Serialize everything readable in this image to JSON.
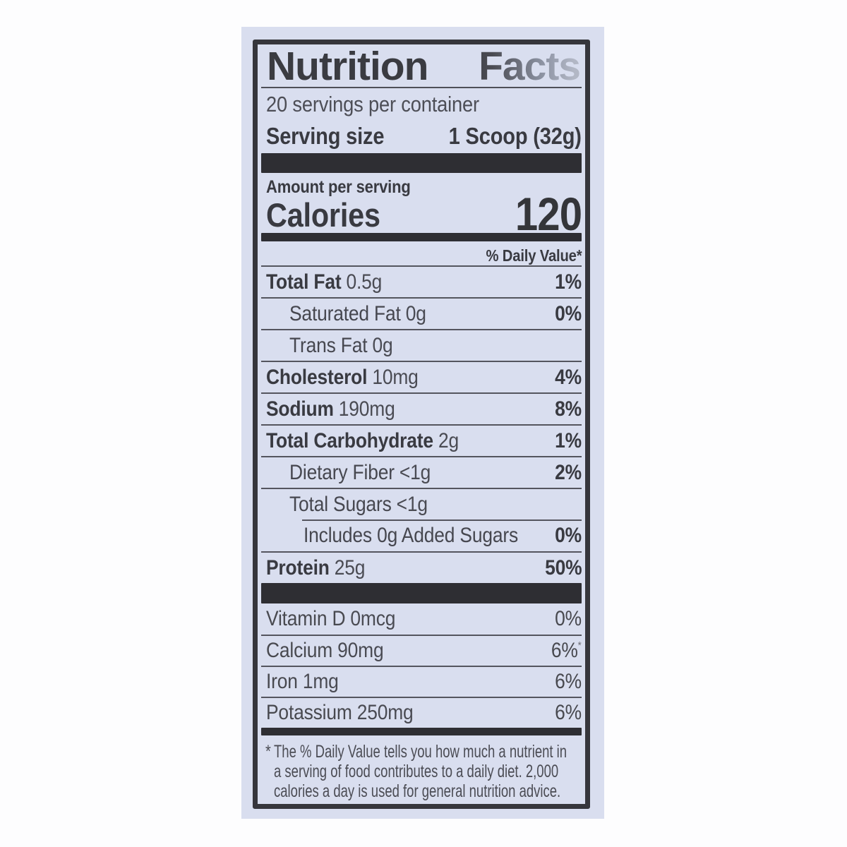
{
  "label": {
    "title_parts": [
      "Nutrition",
      "Facts"
    ],
    "servings_per_container": "20 servings per container",
    "serving_size": {
      "label": "Serving size",
      "value": "1 Scoop (32g)"
    },
    "amount_per_serving": "Amount per serving",
    "calories": {
      "label": "Calories",
      "value": "120"
    },
    "daily_value_header": "% Daily Value*",
    "rows": [
      {
        "name": "Total Fat",
        "amount": "0.5g",
        "percent": "1%"
      },
      {
        "name": "Saturated Fat",
        "amount": "0g",
        "percent": "0%"
      },
      {
        "name": "Trans Fat",
        "amount": "0g",
        "percent": ""
      },
      {
        "name": "Cholesterol",
        "amount": "10mg",
        "percent": "4%"
      },
      {
        "name": "Sodium",
        "amount": "190mg",
        "percent": "8%"
      },
      {
        "name": "Total Carbohydrate",
        "amount": "2g",
        "percent": "1%"
      },
      {
        "name": "Dietary Fiber",
        "amount": "<1g",
        "percent": "2%"
      },
      {
        "name": "Total Sugars",
        "amount": "<1g",
        "percent": ""
      },
      {
        "name": "Includes 0g Added Sugars",
        "amount": "",
        "percent": "0%"
      },
      {
        "name": "Protein",
        "amount": "25g",
        "percent": "50%"
      }
    ],
    "micronutrients": [
      {
        "name": "Vitamin D",
        "amount": "0mcg",
        "percent": "0%",
        "note": ""
      },
      {
        "name": "Calcium",
        "amount": "90mg",
        "percent": "6%",
        "note": "*"
      },
      {
        "name": "Iron",
        "amount": "1mg",
        "percent": "6%",
        "note": ""
      },
      {
        "name": "Potassium",
        "amount": "250mg",
        "percent": "6%",
        "note": ""
      }
    ],
    "footnote": {
      "marker": "*",
      "lines": [
        "The % Daily Value tells you how much a nutrient in",
        "a serving of food contributes to a daily diet. 2,000",
        "calories a day is used for general nutrition advice."
      ]
    },
    "colors": {
      "photo_background": "#d9deef",
      "panel_border": "#36363c",
      "bar": "#2e2e33",
      "text_bold": "#393a41",
      "text_regular": "#4b4c54"
    }
  }
}
